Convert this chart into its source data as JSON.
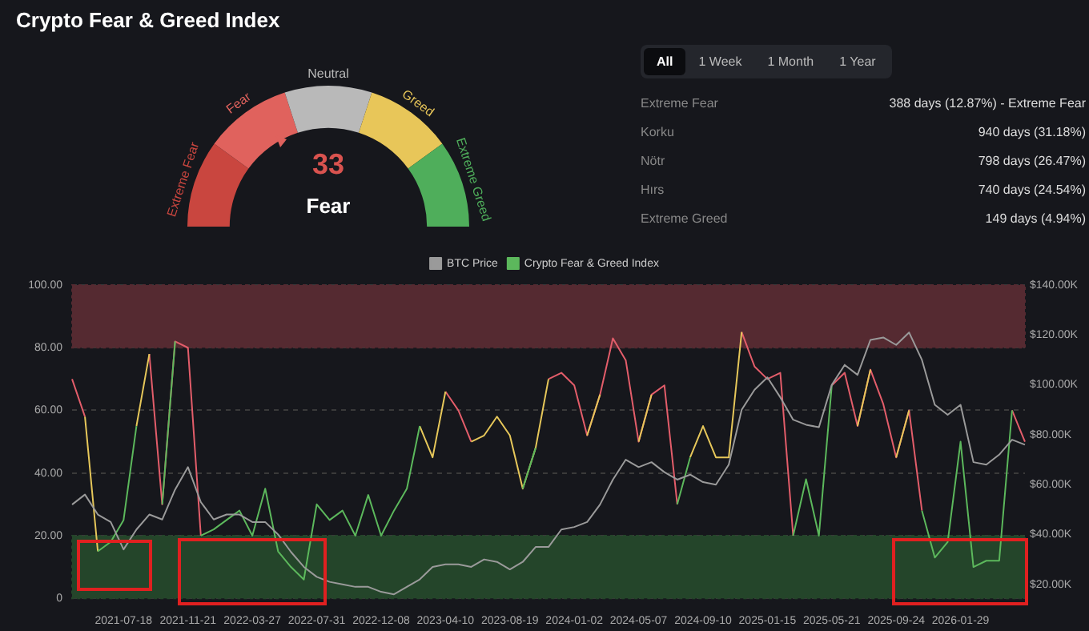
{
  "chart_data": [
    {
      "type": "donut",
      "title": "Crypto Fear & Greed Index",
      "categories": [
        "Extreme Fear",
        "Fear",
        "Neutral",
        "Greed",
        "Extreme Greed"
      ],
      "values": [
        20,
        20,
        20,
        20,
        20
      ],
      "colors": [
        "#c9463f",
        "#e0625d",
        "#b9b9b9",
        "#e8c659",
        "#4fae5b"
      ],
      "annotations": [
        "33",
        "Fear"
      ]
    },
    {
      "type": "other",
      "annotations": [
        "All",
        "1 Week",
        "1 Month",
        "1 Year"
      ],
      "categories": [
        "Extreme Fear",
        "Korku",
        "Nötr",
        "Hırs",
        "Extreme Greed"
      ],
      "value_labels": [
        "388 days (12.87%) - Extreme Fear",
        "940 days (31.18%)",
        "798 days (26.47%)",
        "740 days (24.54%)",
        "149 days (4.94%)"
      ]
    },
    {
      "type": "line",
      "categories": [
        null,
        null,
        null,
        null,
        "2021-07-18",
        null,
        null,
        null,
        null,
        "2021-11-21",
        null,
        null,
        null,
        null,
        "2022-03-27",
        null,
        null,
        null,
        null,
        "2022-07-31",
        null,
        null,
        null,
        null,
        "2022-12-08",
        null,
        null,
        null,
        null,
        "2023-04-10",
        null,
        null,
        null,
        null,
        "2023-08-19",
        null,
        null,
        null,
        null,
        "2024-01-02",
        null,
        null,
        null,
        null,
        "2024-05-07",
        null,
        null,
        null,
        null,
        "2024-09-10",
        null,
        null,
        null,
        null,
        "2025-01-15",
        null,
        null,
        null,
        null,
        "2025-05-21",
        null,
        null,
        null,
        null,
        "2025-09-24",
        null,
        null,
        null,
        null,
        "2026-01-29",
        null,
        null,
        null,
        null,
        null
      ],
      "series": [
        {
          "name": "BTC Price",
          "color": "#9a9a9a",
          "axis": "y2",
          "values": [
            52000,
            56000,
            48000,
            45000,
            34000,
            42000,
            48000,
            46000,
            58000,
            67000,
            53000,
            46000,
            48000,
            48000,
            45000,
            45000,
            40000,
            33000,
            27000,
            23000,
            21000,
            20000,
            19000,
            19000,
            17000,
            16000,
            19000,
            22000,
            27000,
            28000,
            28000,
            27000,
            30000,
            29000,
            26000,
            29000,
            35000,
            35000,
            42000,
            43000,
            45000,
            52000,
            62000,
            70000,
            67000,
            69000,
            65000,
            62000,
            64000,
            61000,
            60000,
            68000,
            90000,
            98000,
            103000,
            95000,
            86000,
            84000,
            83000,
            100000,
            108000,
            104000,
            118000,
            119000,
            116000,
            121000,
            110000,
            92000,
            88000,
            92000,
            69000,
            68000,
            72000,
            78000,
            76000
          ]
        },
        {
          "name": "Crypto Fear & Greed Index",
          "color": "#5cb85c",
          "values": [
            null,
            null,
            15,
            18,
            25,
            55,
            null,
            30,
            82,
            null,
            20,
            22,
            25,
            28,
            20,
            35,
            15,
            10,
            6,
            30,
            25,
            28,
            20,
            33,
            20,
            28,
            35,
            55,
            null,
            null,
            null,
            null,
            null,
            null,
            null,
            35,
            48,
            null,
            null,
            null,
            null,
            null,
            null,
            null,
            null,
            null,
            null,
            30,
            45,
            null,
            null,
            null,
            null,
            null,
            null,
            null,
            20,
            38,
            20,
            68,
            null,
            null,
            null,
            null,
            null,
            null,
            28,
            13,
            18,
            50,
            10,
            12,
            12,
            60,
            null
          ]
        },
        {
          "color": "#e6c75a",
          "values": [
            null,
            58,
            15,
            null,
            null,
            55,
            78,
            null,
            null,
            null,
            null,
            null,
            null,
            null,
            null,
            null,
            null,
            null,
            null,
            null,
            null,
            null,
            null,
            null,
            null,
            null,
            null,
            55,
            45,
            66,
            null,
            50,
            52,
            58,
            52,
            35,
            48,
            70,
            null,
            null,
            52,
            65,
            null,
            null,
            50,
            65,
            null,
            null,
            45,
            55,
            45,
            45,
            85,
            null,
            null,
            null,
            null,
            null,
            null,
            null,
            null,
            55,
            73,
            null,
            45,
            60,
            null,
            null,
            null,
            null,
            null,
            null,
            null,
            null,
            null
          ]
        },
        {
          "color": "#e35d6a",
          "values": [
            70,
            58,
            null,
            null,
            null,
            null,
            78,
            30,
            82,
            80,
            20,
            null,
            null,
            null,
            null,
            null,
            null,
            null,
            null,
            null,
            null,
            null,
            null,
            null,
            null,
            null,
            null,
            null,
            null,
            66,
            60,
            50,
            null,
            null,
            null,
            null,
            null,
            70,
            72,
            68,
            52,
            65,
            83,
            76,
            50,
            65,
            68,
            30,
            null,
            null,
            null,
            null,
            85,
            74,
            70,
            72,
            20,
            null,
            null,
            68,
            72,
            55,
            73,
            62,
            45,
            60,
            28,
            null,
            null,
            null,
            null,
            null,
            null,
            60,
            50
          ]
        }
      ],
      "ylim": [
        0,
        100
      ],
      "yticks": [
        0,
        {
          "value": 20,
          "label": "20.00"
        },
        {
          "value": 40,
          "label": "40.00"
        },
        {
          "value": 60,
          "label": "60.00"
        },
        {
          "value": 80,
          "label": "80.00"
        },
        {
          "value": 100,
          "label": "100.00"
        }
      ],
      "y2lim": [
        14400,
        140000
      ],
      "y2ticks": [
        {
          "value": 20000,
          "label": "$20.00K"
        },
        {
          "value": 40000,
          "label": "$40.00K"
        },
        {
          "value": 60000,
          "label": "$60.00K"
        },
        {
          "value": 80000,
          "label": "$80.00K"
        },
        {
          "value": 100000,
          "label": "$100.00K"
        },
        {
          "value": 120000,
          "label": "$120.00K"
        },
        {
          "value": 140000,
          "label": "$140.00K"
        }
      ],
      "bands": [
        {
          "axis": "y",
          "from": 80,
          "to": 100,
          "color": "#552a31"
        },
        {
          "axis": "y",
          "from": 0,
          "to": 20,
          "color": "#24452a"
        }
      ],
      "grid": "y",
      "legend": "top",
      "marker": "none"
    }
  ]
}
